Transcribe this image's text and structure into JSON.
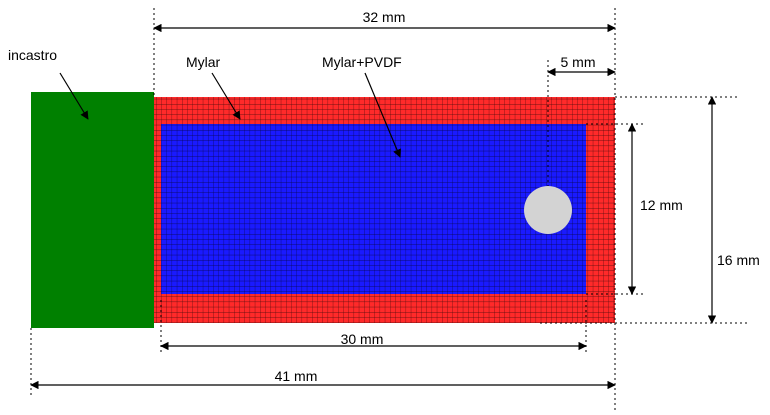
{
  "labels": {
    "clamp": "incastro",
    "mylar": "Mylar",
    "mylar_pvdf": "Mylar+PVDF"
  },
  "dimensions": {
    "total_mylar_length": "32 mm",
    "mass_offset": "5 mm",
    "pvdf_width": "12 mm",
    "mylar_width": "16 mm",
    "pvdf_length": "30 mm",
    "total_length": "41 mm"
  },
  "colors": {
    "clamp": "#008000",
    "mylar": "#ff2a2a",
    "pvdf": "#1a1aff",
    "mass": "#d3d3d3",
    "mesh_line": "#000000"
  }
}
